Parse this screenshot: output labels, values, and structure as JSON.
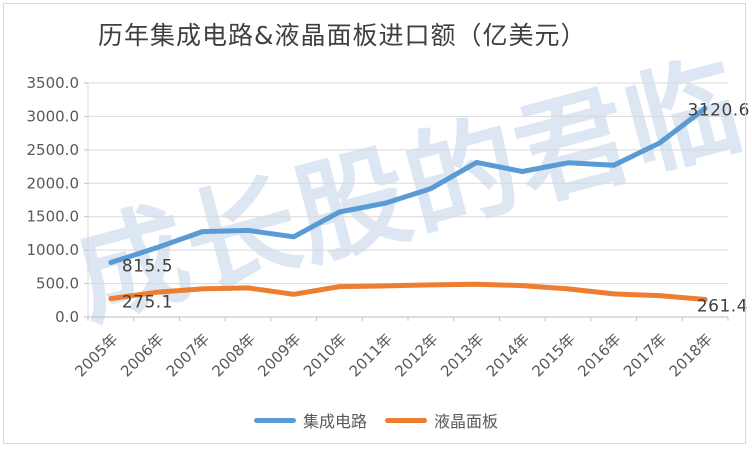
{
  "title": "历年集成电路&液晶面板进口额（亿美元）",
  "watermark": "成长股的君临",
  "colors": {
    "ic_line": "#5B9BD5",
    "lcd_line": "#ED7D31",
    "gridline": "#D9D9D9",
    "axis_line": "#BFBFBF",
    "axis_text": "#595959",
    "data_label_text": "#404040",
    "border": "#D9D9D9",
    "watermark_text": "#DDE6F3"
  },
  "legend": {
    "items": [
      {
        "label": "集成电路",
        "color": "#5B9BD5"
      },
      {
        "label": "液晶面板",
        "color": "#ED7D31"
      }
    ]
  },
  "chart_data": {
    "type": "line",
    "title": "历年集成电路&液晶面板进口额（亿美元）",
    "xlabel": "",
    "ylabel": "",
    "categories": [
      "2005年",
      "2006年",
      "2007年",
      "2008年",
      "2009年",
      "2010年",
      "2011年",
      "2012年",
      "2013年",
      "2014年",
      "2015年",
      "2016年",
      "2017年",
      "2018年"
    ],
    "series": [
      {
        "name": "集成电路",
        "color": "#5B9BD5",
        "values": [
          815.5,
          1035,
          1277,
          1295,
          1200,
          1570,
          1702,
          1921,
          2313,
          2176,
          2307,
          2271,
          2601,
          3120.6
        ]
      },
      {
        "name": "液晶面板",
        "color": "#ED7D31",
        "values": [
          275.1,
          370,
          420,
          435,
          340,
          455,
          465,
          480,
          490,
          470,
          420,
          345,
          320,
          261.4
        ]
      }
    ],
    "ylim": [
      0,
      3500
    ],
    "ytick_step": 500,
    "ytick_labels": [
      "0.0",
      "500.0",
      "1000.0",
      "1500.0",
      "2000.0",
      "2500.0",
      "3000.0",
      "3500.0"
    ],
    "grid": "horizontal",
    "legend_position": "bottom",
    "x_label_rotation": -45,
    "point_labels": [
      {
        "series": 0,
        "index": 0,
        "text": "815.5"
      },
      {
        "series": 0,
        "index": 13,
        "text": "3120.6"
      },
      {
        "series": 1,
        "index": 0,
        "text": "275.1"
      },
      {
        "series": 1,
        "index": 13,
        "text": "261.4"
      }
    ]
  }
}
